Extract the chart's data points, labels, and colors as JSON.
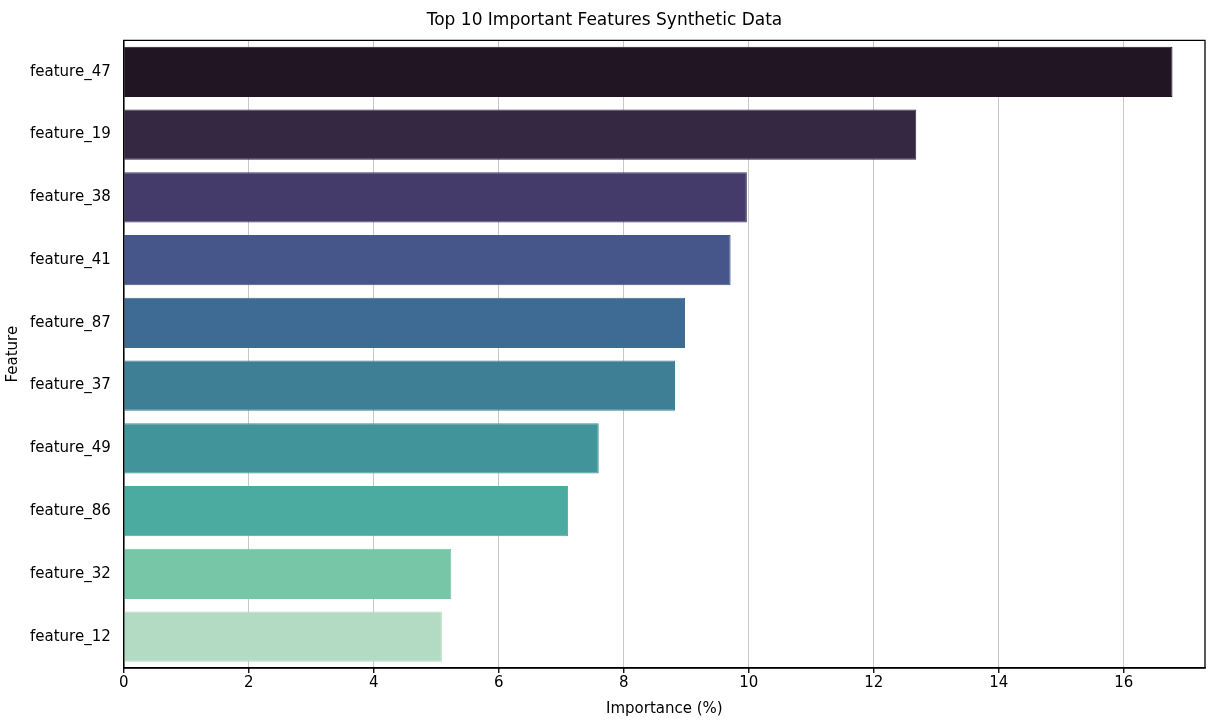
{
  "chart_data": {
    "type": "bar",
    "orientation": "horizontal",
    "title": "Top 10 Important Features Synthetic Data",
    "xlabel": "Importance (%)",
    "ylabel": "Feature",
    "categories": [
      "feature_47",
      "feature_19",
      "feature_38",
      "feature_41",
      "feature_87",
      "feature_37",
      "feature_49",
      "feature_86",
      "feature_32",
      "feature_12"
    ],
    "values": [
      16.78,
      12.68,
      9.97,
      9.71,
      8.98,
      8.82,
      7.6,
      7.11,
      5.24,
      5.09
    ],
    "colors": [
      "#211423",
      "#352843",
      "#453b6b",
      "#46568a",
      "#3d6b93",
      "#3e7f95",
      "#41949a",
      "#4caba0",
      "#78c6a8",
      "#b3dac3"
    ],
    "xlim": [
      0,
      17.3
    ],
    "xticks": [
      0,
      2,
      4,
      6,
      8,
      10,
      12,
      14,
      16
    ],
    "grid": "x"
  }
}
